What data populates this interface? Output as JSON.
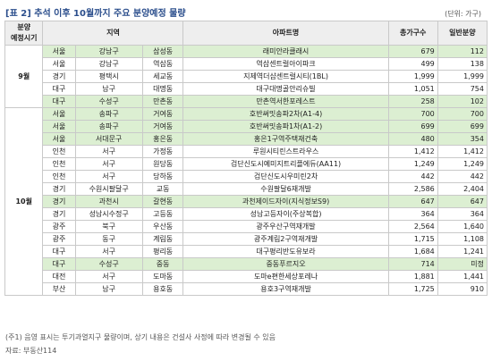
{
  "title": "[표 2] 추석 이후 10월까지 주요 분양예정 물량",
  "unit": "(단위: 가구)",
  "headers": {
    "period": "분양\n예정시기",
    "region": "지역",
    "apartment": "아파트명",
    "total": "총가구수",
    "general": "일반분양"
  },
  "groups": [
    {
      "period": "9월",
      "rows": [
        {
          "r1": "서울",
          "r2": "강남구",
          "r3": "삼성동",
          "apt": "래미안라클래시",
          "total": "679",
          "gen": "112",
          "shade": true
        },
        {
          "r1": "서울",
          "r2": "강남구",
          "r3": "역삼동",
          "apt": "역삼센트럴아이파크",
          "total": "499",
          "gen": "138",
          "shade": false
        },
        {
          "r1": "경기",
          "r2": "평택시",
          "r3": "세교동",
          "apt": "지제역더샵센트럴시티(1BL)",
          "total": "1,999",
          "gen": "1,999",
          "shade": false
        },
        {
          "r1": "대구",
          "r2": "남구",
          "r3": "대명동",
          "apt": "대구대명골안리슈빌",
          "total": "1,051",
          "gen": "754",
          "shade": false
        },
        {
          "r1": "대구",
          "r2": "수성구",
          "r3": "만촌동",
          "apt": "만촌역서한포레스트",
          "total": "258",
          "gen": "102",
          "shade": true
        }
      ]
    },
    {
      "period": "10월",
      "rows": [
        {
          "r1": "서울",
          "r2": "송파구",
          "r3": "거여동",
          "apt": "호반써밋송파2차(A1-4)",
          "total": "700",
          "gen": "700",
          "shade": true
        },
        {
          "r1": "서울",
          "r2": "송파구",
          "r3": "거여동",
          "apt": "호반써밋송파1차(A1-2)",
          "total": "699",
          "gen": "699",
          "shade": true
        },
        {
          "r1": "서울",
          "r2": "서대문구",
          "r3": "홍은동",
          "apt": "홍은1구역주택재건축",
          "total": "480",
          "gen": "354",
          "shade": true
        },
        {
          "r1": "인천",
          "r2": "서구",
          "r3": "가정동",
          "apt": "루원시티린스트라우스",
          "total": "1,412",
          "gen": "1,412",
          "shade": false
        },
        {
          "r1": "인천",
          "r2": "서구",
          "r3": "원당동",
          "apt": "검단신도시예미지트리플에듀(AA11)",
          "total": "1,249",
          "gen": "1,249",
          "shade": false
        },
        {
          "r1": "인천",
          "r2": "서구",
          "r3": "당하동",
          "apt": "검단신도시우미린2차",
          "total": "442",
          "gen": "442",
          "shade": false
        },
        {
          "r1": "경기",
          "r2": "수원시팔달구",
          "r3": "교동",
          "apt": "수원팔달6재개발",
          "total": "2,586",
          "gen": "2,404",
          "shade": false
        },
        {
          "r1": "경기",
          "r2": "과천시",
          "r3": "갈현동",
          "apt": "과천제이드자이(지식정보S9)",
          "total": "647",
          "gen": "647",
          "shade": true
        },
        {
          "r1": "경기",
          "r2": "성남시수정구",
          "r3": "고등동",
          "apt": "성남고등자이(주상복합)",
          "total": "364",
          "gen": "364",
          "shade": false
        },
        {
          "r1": "광주",
          "r2": "북구",
          "r3": "우산동",
          "apt": "광주우산구역재개발",
          "total": "2,564",
          "gen": "1,640",
          "shade": false
        },
        {
          "r1": "광주",
          "r2": "동구",
          "r3": "계림동",
          "apt": "광주계림2구역재개발",
          "total": "1,715",
          "gen": "1,108",
          "shade": false
        },
        {
          "r1": "대구",
          "r2": "서구",
          "r3": "평리동",
          "apt": "대구평리반도유보라",
          "total": "1,684",
          "gen": "1,241",
          "shade": false
        },
        {
          "r1": "대구",
          "r2": "수성구",
          "r3": "중동",
          "apt": "중동푸르지오",
          "total": "714",
          "gen": "미정",
          "shade": true
        },
        {
          "r1": "대전",
          "r2": "서구",
          "r3": "도마동",
          "apt": "도마e편한세상포레나",
          "total": "1,881",
          "gen": "1,441",
          "shade": false
        },
        {
          "r1": "부산",
          "r2": "남구",
          "r3": "용호동",
          "apt": "용호3구역재개발",
          "total": "1,725",
          "gen": "910",
          "shade": false
        }
      ]
    }
  ],
  "footnote": "(주1) 음영 표시는 투기과열지구 물량이며, 상기 내용은 건설사 사정에 따라 변경될 수 있음",
  "source": "자료: 부동산114",
  "colors": {
    "title": "#2b4e8c",
    "shade": "#dcefd2",
    "header": "#eeeeee"
  }
}
